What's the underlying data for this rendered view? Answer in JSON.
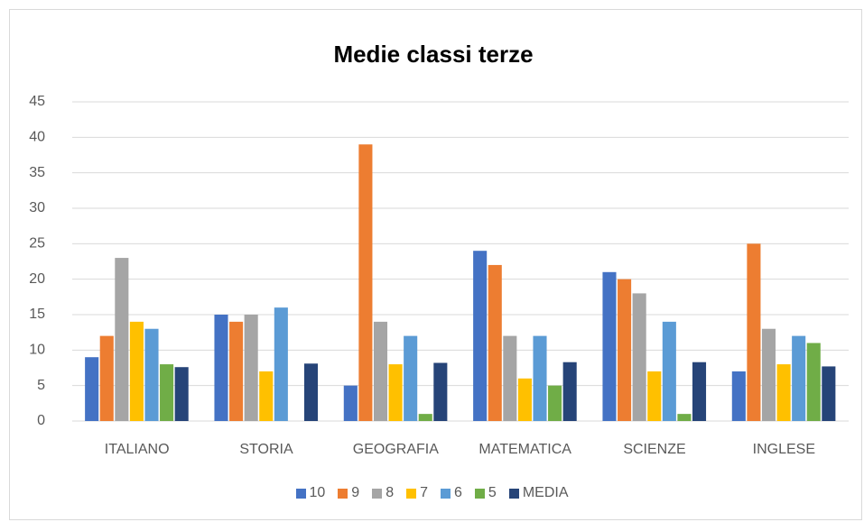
{
  "chart_data": {
    "type": "bar",
    "title": "Medie classi terze",
    "categories": [
      "ITALIANO",
      "STORIA",
      "GEOGRAFIA",
      "MATEMATICA",
      "SCIENZE",
      "INGLESE"
    ],
    "series": [
      {
        "name": "10",
        "color": "#4472c4",
        "values": [
          9,
          15,
          5,
          24,
          21,
          7
        ]
      },
      {
        "name": "9",
        "color": "#ed7d31",
        "values": [
          12,
          14,
          39,
          22,
          20,
          25
        ]
      },
      {
        "name": "8",
        "color": "#a5a5a5",
        "values": [
          23,
          15,
          14,
          12,
          18,
          13
        ]
      },
      {
        "name": "7",
        "color": "#ffc000",
        "values": [
          14,
          7,
          8,
          6,
          7,
          8
        ]
      },
      {
        "name": "6",
        "color": "#5b9bd5",
        "values": [
          13,
          16,
          12,
          12,
          14,
          12
        ]
      },
      {
        "name": "5",
        "color": "#70ad47",
        "values": [
          8,
          0,
          1,
          5,
          1,
          11
        ]
      },
      {
        "name": "MEDIA",
        "color": "#264478",
        "values": [
          7.6,
          8.1,
          8.2,
          8.3,
          8.3,
          7.7
        ]
      }
    ],
    "ylim": [
      0,
      45
    ],
    "yticks": [
      0,
      5,
      10,
      15,
      20,
      25,
      30,
      35,
      40,
      45
    ],
    "grid": true,
    "legend": "bottom"
  }
}
